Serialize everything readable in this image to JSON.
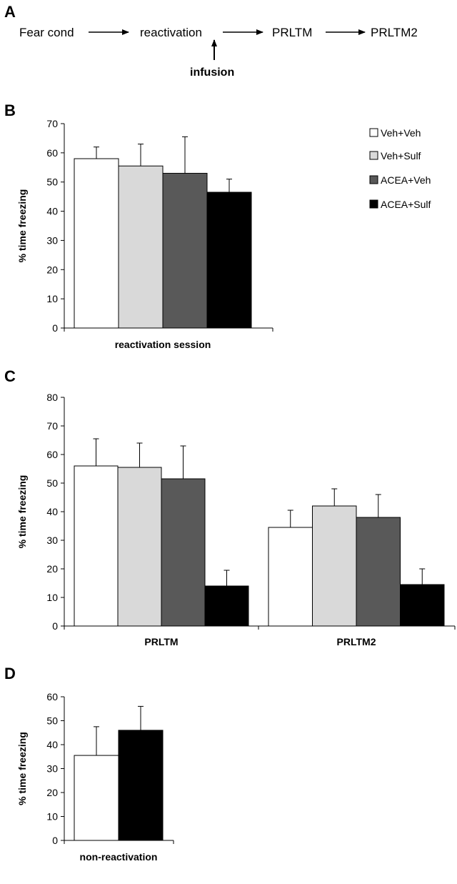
{
  "panels": [
    "A",
    "B",
    "C",
    "D"
  ],
  "flow": {
    "steps": [
      "Fear cond",
      "reactivation",
      "PRLTM",
      "PRLTM2"
    ],
    "infusion_label": "infusion"
  },
  "colors": {
    "Veh+Veh": "#ffffff",
    "Veh+Sulf": "#d9d9d9",
    "ACEA+Veh": "#595959",
    "ACEA+Sulf": "#000000"
  },
  "legend": {
    "position": "top-right",
    "entries": [
      "Veh+Veh",
      "Veh+Sulf",
      "ACEA+Veh",
      "ACEA+Sulf"
    ]
  },
  "chart_data": [
    {
      "panel": "B",
      "type": "bar",
      "ylabel": "% time freezing",
      "ylim": [
        0,
        70
      ],
      "yticks": [
        0,
        10,
        20,
        30,
        40,
        50,
        60,
        70
      ],
      "categories": [
        "reactivation session"
      ],
      "series": [
        {
          "name": "Veh+Veh",
          "values": [
            58
          ],
          "errors": [
            4
          ]
        },
        {
          "name": "Veh+Sulf",
          "values": [
            55.5
          ],
          "errors": [
            7.5
          ]
        },
        {
          "name": "ACEA+Veh",
          "values": [
            53
          ],
          "errors": [
            12.5
          ]
        },
        {
          "name": "ACEA+Sulf",
          "values": [
            46.5
          ],
          "errors": [
            4.5
          ]
        }
      ]
    },
    {
      "panel": "C",
      "type": "bar",
      "ylabel": "% time freezing",
      "ylim": [
        0,
        80
      ],
      "yticks": [
        0,
        10,
        20,
        30,
        40,
        50,
        60,
        70,
        80
      ],
      "categories": [
        "PRLTM",
        "PRLTM2"
      ],
      "series": [
        {
          "name": "Veh+Veh",
          "values": [
            56,
            34.5
          ],
          "errors": [
            9.5,
            6
          ]
        },
        {
          "name": "Veh+Sulf",
          "values": [
            55.5,
            42
          ],
          "errors": [
            8.5,
            6
          ]
        },
        {
          "name": "ACEA+Veh",
          "values": [
            51.5,
            38
          ],
          "errors": [
            11.5,
            8
          ]
        },
        {
          "name": "ACEA+Sulf",
          "values": [
            14,
            14.5
          ],
          "errors": [
            5.5,
            5.5
          ]
        }
      ]
    },
    {
      "panel": "D",
      "type": "bar",
      "ylabel": "% time freezing",
      "ylim": [
        0,
        60
      ],
      "yticks": [
        0,
        10,
        20,
        30,
        40,
        50,
        60
      ],
      "categories": [
        "non-reactivation"
      ],
      "series": [
        {
          "name": "Veh+Veh",
          "values": [
            35.5
          ],
          "errors": [
            12
          ]
        },
        {
          "name": "ACEA+Sulf",
          "values": [
            46
          ],
          "errors": [
            10
          ]
        }
      ]
    }
  ]
}
